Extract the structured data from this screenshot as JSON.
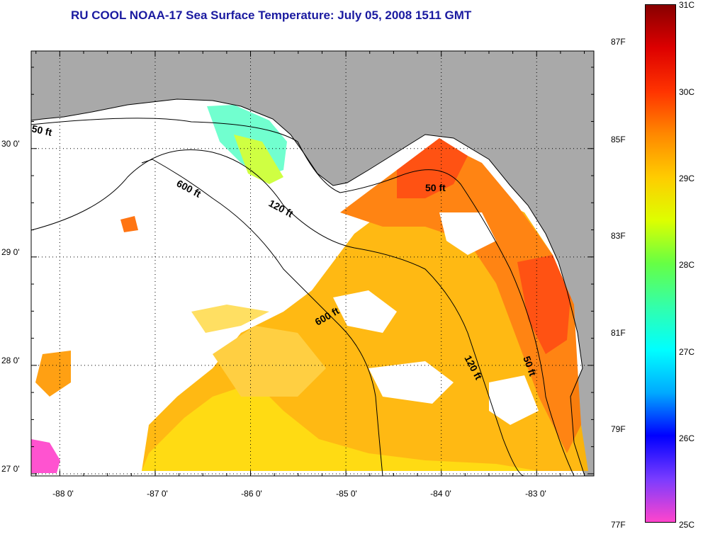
{
  "title": "RU COOL  NOAA-17  Sea Surface Temperature:  July 05, 2008 1511 GMT",
  "map": {
    "lon_range": [
      -88.3,
      -82.4
    ],
    "lat_range": [
      26.98,
      30.9
    ],
    "lat_ticks": [
      "30 0'",
      "29 0'",
      "28 0'",
      "27 0'"
    ],
    "lat_values": [
      30,
      29,
      28,
      27
    ],
    "lon_ticks": [
      "-88 0'",
      "-87 0'",
      "-86 0'",
      "-85 0'",
      "-84 0'",
      "-83 0'"
    ],
    "lon_values": [
      -88,
      -87,
      -86,
      -85,
      -84,
      -83
    ],
    "grid": "dotted",
    "contours": [
      {
        "label": "50 ft"
      },
      {
        "label": "600 ft"
      },
      {
        "label": "120 ft"
      },
      {
        "label": "50 ft"
      },
      {
        "label": "600 ft"
      },
      {
        "label": "120 ft"
      },
      {
        "label": "50 ft"
      }
    ],
    "colors": {
      "land": "#a9a9a9",
      "no_data": "#ffffff",
      "coast": "#000000"
    }
  },
  "colorbar": {
    "f_labels": [
      "87F",
      "85F",
      "83F",
      "81F",
      "79F",
      "77F"
    ],
    "f_values": [
      87,
      85,
      83,
      81,
      79,
      77
    ],
    "c_labels": [
      "31C",
      "30C",
      "29C",
      "28C",
      "27C",
      "26C",
      "25C"
    ],
    "c_values": [
      31,
      30,
      29,
      28,
      27,
      26,
      25
    ],
    "range_c": [
      25,
      31
    ],
    "stops": [
      "#ff44cc",
      "#7a3cff",
      "#0000ff",
      "#00aaff",
      "#00ffff",
      "#33ffaa",
      "#66ff44",
      "#ddff00",
      "#ffcc00",
      "#ff8800",
      "#ff3300",
      "#dd0000",
      "#880000"
    ]
  }
}
